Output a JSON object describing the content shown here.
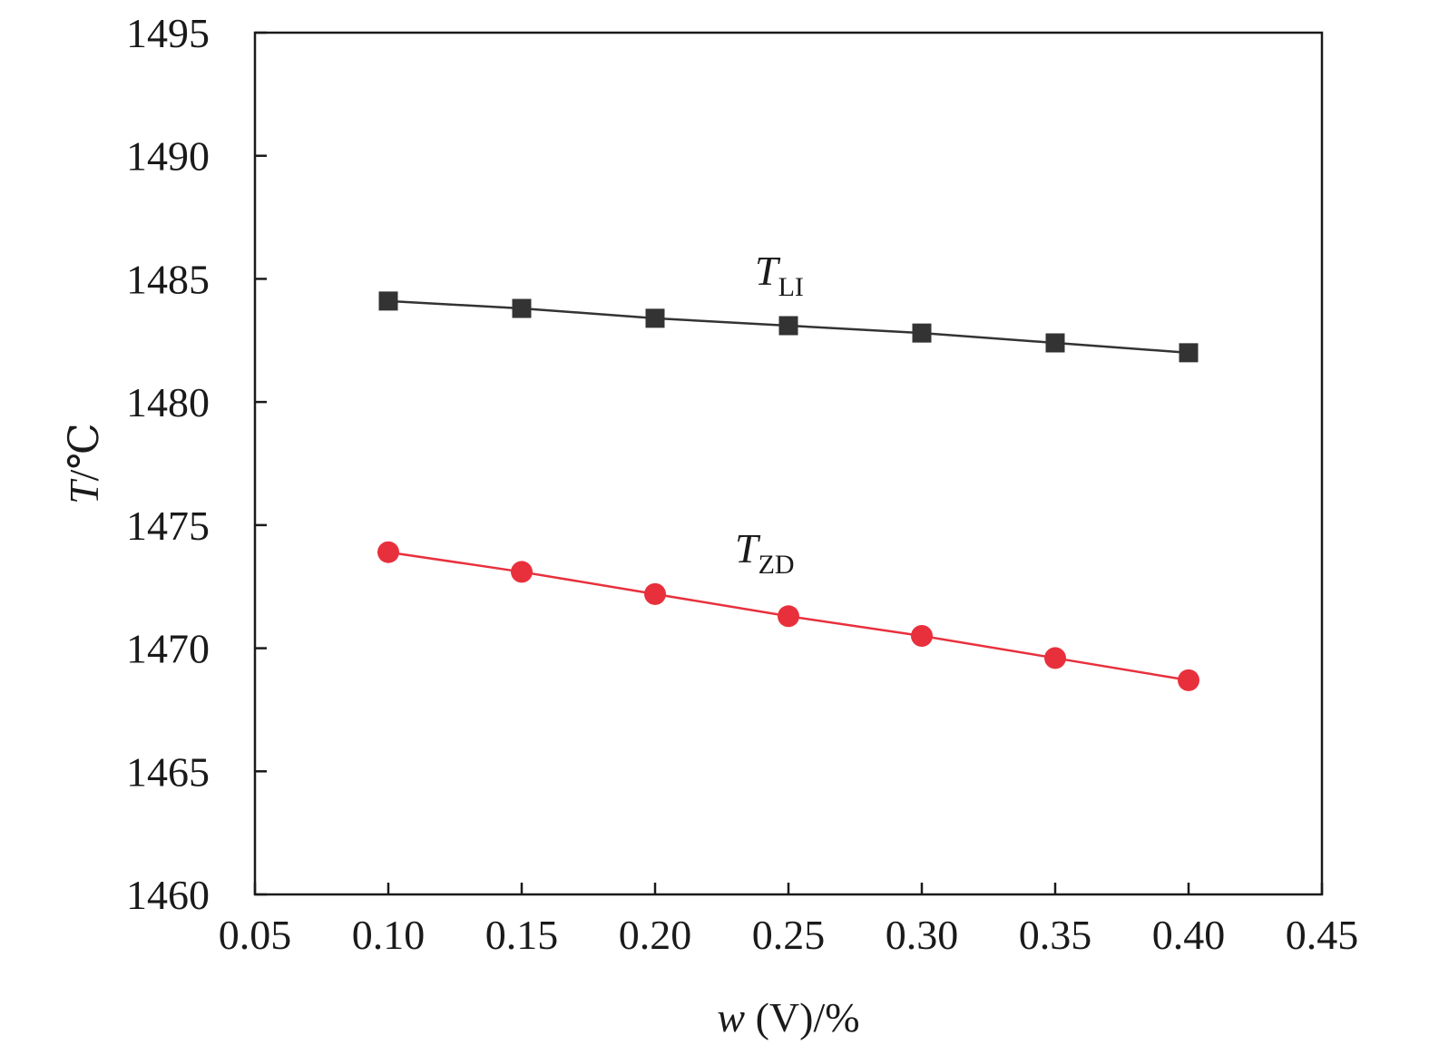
{
  "chart_data": {
    "type": "line",
    "xlabel": {
      "italic": "w",
      "rest": " (V)/%"
    },
    "ylabel": {
      "italic": "T",
      "rest": "/℃"
    },
    "xlim": [
      0.05,
      0.45
    ],
    "ylim": [
      1460,
      1495
    ],
    "xticks": [
      "0.05",
      "0.10",
      "0.15",
      "0.20",
      "0.25",
      "0.30",
      "0.35",
      "0.40",
      "0.45"
    ],
    "yticks": [
      "1460",
      "1465",
      "1470",
      "1475",
      "1480",
      "1485",
      "1490",
      "1495"
    ],
    "x": [
      0.1,
      0.15,
      0.2,
      0.25,
      0.3,
      0.35,
      0.4
    ],
    "series": [
      {
        "label_main": "T",
        "label_sub": "LI",
        "marker": "square",
        "color": "#333333",
        "values": [
          1484.1,
          1483.8,
          1483.4,
          1483.1,
          1482.8,
          1482.4,
          1482.0
        ]
      },
      {
        "label_main": "T",
        "label_sub": "ZD",
        "marker": "circle",
        "color": "#e8303c",
        "values": [
          1473.9,
          1473.1,
          1472.2,
          1471.3,
          1470.5,
          1469.6,
          1468.7
        ]
      }
    ]
  }
}
